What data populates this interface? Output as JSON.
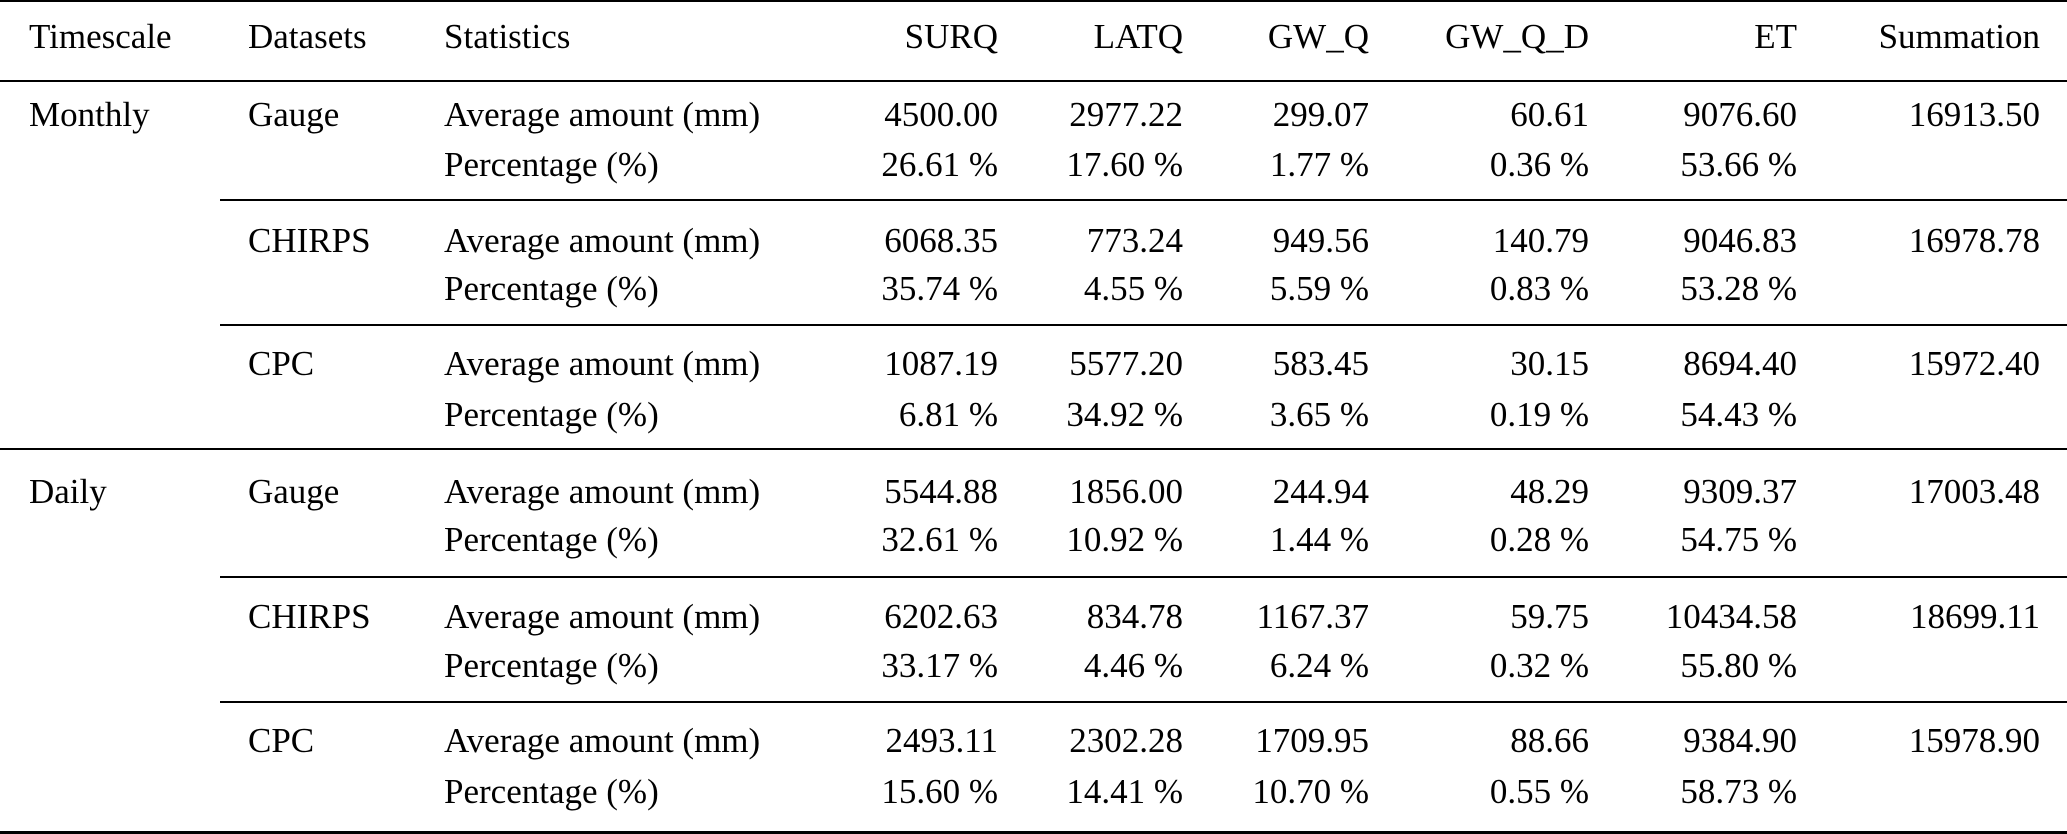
{
  "header": {
    "columns": [
      "Timescale",
      "Datasets",
      "Statistics",
      "SURQ",
      "LATQ",
      "GW_Q",
      "GW_Q_D",
      "ET",
      "Summation"
    ]
  },
  "groups": [
    {
      "timescale": "Monthly",
      "datasets": [
        {
          "name": "Gauge",
          "amount_label": "Average amount (mm)",
          "amounts": [
            "4500.00",
            "2977.22",
            "299.07",
            "60.61",
            "9076.60"
          ],
          "summation": "16913.50",
          "percent_label": "Percentage (%)",
          "percents": [
            "26.61 %",
            "17.60 %",
            "1.77 %",
            "0.36 %",
            "53.66 %"
          ]
        },
        {
          "name": "CHIRPS",
          "amount_label": "Average amount (mm)",
          "amounts": [
            "6068.35",
            "773.24",
            "949.56",
            "140.79",
            "9046.83"
          ],
          "summation": "16978.78",
          "percent_label": "Percentage (%)",
          "percents": [
            "35.74 %",
            "4.55 %",
            "5.59 %",
            "0.83 %",
            "53.28 %"
          ]
        },
        {
          "name": "CPC",
          "amount_label": "Average amount (mm)",
          "amounts": [
            "1087.19",
            "5577.20",
            "583.45",
            "30.15",
            "8694.40"
          ],
          "summation": "15972.40",
          "percent_label": "Percentage (%)",
          "percents": [
            "6.81 %",
            "34.92 %",
            "3.65 %",
            "0.19 %",
            "54.43 %"
          ]
        }
      ]
    },
    {
      "timescale": "Daily",
      "datasets": [
        {
          "name": "Gauge",
          "amount_label": "Average amount (mm)",
          "amounts": [
            "5544.88",
            "1856.00",
            "244.94",
            "48.29",
            "9309.37"
          ],
          "summation": "17003.48",
          "percent_label": "Percentage (%)",
          "percents": [
            "32.61 %",
            "10.92 %",
            "1.44 %",
            "0.28 %",
            "54.75 %"
          ]
        },
        {
          "name": "CHIRPS",
          "amount_label": "Average amount (mm)",
          "amounts": [
            "6202.63",
            "834.78",
            "1167.37",
            "59.75",
            "10434.58"
          ],
          "summation": "18699.11",
          "percent_label": "Percentage (%)",
          "percents": [
            "33.17 %",
            "4.46 %",
            "6.24 %",
            "0.32 %",
            "55.80 %"
          ]
        },
        {
          "name": "CPC",
          "amount_label": "Average amount (mm)",
          "amounts": [
            "2493.11",
            "2302.28",
            "1709.95",
            "88.66",
            "9384.90"
          ],
          "summation": "15978.90",
          "percent_label": "Percentage (%)",
          "percents": [
            "15.60 %",
            "14.41 %",
            "10.70 %",
            "0.55 %",
            "58.73 %"
          ]
        }
      ]
    }
  ]
}
